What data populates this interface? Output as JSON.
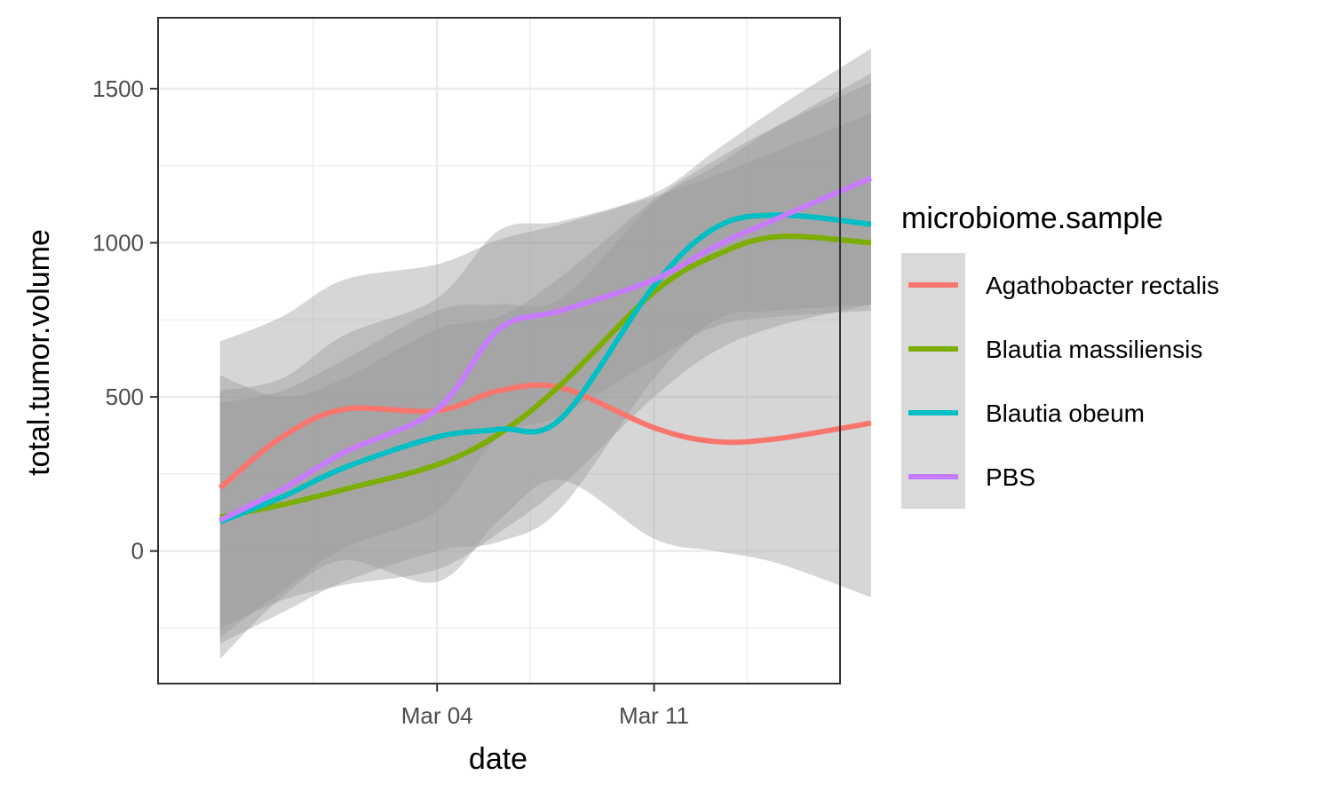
{
  "chart_data": {
    "type": "line",
    "xlabel": "date",
    "ylabel": "total.tumor.volume",
    "x_ticks": [
      "Mar 04",
      "Mar 11"
    ],
    "y_ticks": [
      "0",
      "500",
      "1000",
      "1500"
    ],
    "xlim": [
      "2024-02-24",
      "2024-03-17"
    ],
    "ylim": [
      -430,
      1730
    ],
    "grid": true,
    "legend": {
      "title": "microbiome.sample",
      "position": "right"
    },
    "series": [
      {
        "name": "Agathobacter rectalis",
        "color": "#F8766D",
        "x": [
          "2024-02-26",
          "2024-02-28",
          "2024-03-01",
          "2024-03-04",
          "2024-03-06",
          "2024-03-08",
          "2024-03-11",
          "2024-03-13",
          "2024-03-15",
          "2024-03-18"
        ],
        "y": [
          205,
          370,
          460,
          455,
          520,
          530,
          400,
          355,
          365,
          415
        ],
        "lower": [
          -350,
          -150,
          -30,
          -100,
          100,
          230,
          40,
          0,
          -40,
          -150
        ],
        "upper": [
          680,
          760,
          880,
          930,
          1010,
          1060,
          1150,
          1220,
          1300,
          1420
        ]
      },
      {
        "name": "Blautia massiliensis",
        "color": "#7CAE00",
        "x": [
          "2024-02-26",
          "2024-02-28",
          "2024-03-01",
          "2024-03-04",
          "2024-03-06",
          "2024-03-08",
          "2024-03-11",
          "2024-03-13",
          "2024-03-15",
          "2024-03-18"
        ],
        "y": [
          110,
          150,
          200,
          280,
          380,
          540,
          840,
          960,
          1020,
          1000
        ],
        "lower": [
          -250,
          -160,
          -110,
          -60,
          60,
          210,
          500,
          650,
          730,
          800
        ],
        "upper": [
          570,
          500,
          560,
          720,
          760,
          890,
          1140,
          1270,
          1380,
          1520
        ]
      },
      {
        "name": "Blautia obeum",
        "color": "#00BFC4",
        "x": [
          "2024-02-26",
          "2024-02-28",
          "2024-03-01",
          "2024-03-04",
          "2024-03-06",
          "2024-03-08",
          "2024-03-11",
          "2024-03-13",
          "2024-03-15",
          "2024-03-18"
        ],
        "y": [
          95,
          175,
          270,
          370,
          395,
          430,
          860,
          1050,
          1090,
          1060
        ],
        "lower": [
          -300,
          -200,
          -100,
          0,
          30,
          140,
          560,
          750,
          780,
          800
        ],
        "upper": [
          480,
          520,
          620,
          780,
          800,
          820,
          1130,
          1250,
          1380,
          1550
        ]
      },
      {
        "name": "PBS",
        "color": "#C77CFF",
        "x": [
          "2024-02-26",
          "2024-02-28",
          "2024-03-01",
          "2024-03-04",
          "2024-03-06",
          "2024-03-08",
          "2024-03-11",
          "2024-03-13",
          "2024-03-15",
          "2024-03-18"
        ],
        "y": [
          100,
          200,
          320,
          460,
          720,
          780,
          880,
          990,
          1080,
          1210
        ],
        "lower": [
          -280,
          -130,
          10,
          130,
          370,
          440,
          620,
          730,
          760,
          780
        ],
        "upper": [
          520,
          560,
          700,
          820,
          1040,
          1070,
          1160,
          1300,
          1440,
          1630
        ]
      }
    ]
  }
}
